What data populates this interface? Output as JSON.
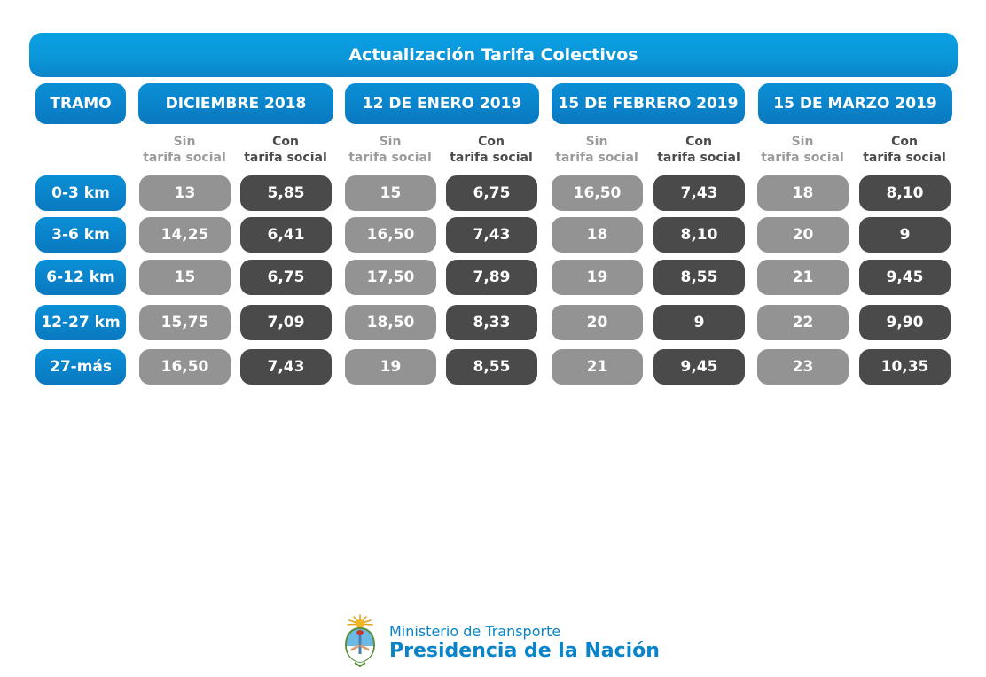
{
  "title": "Actualización Tarifa Colectivos",
  "tramo_header": "TRAMO",
  "periods": [
    {
      "label": "DICIEMBRE 2018"
    },
    {
      "label": "12 DE ENERO 2019"
    },
    {
      "label": "15 DE FEBRERO 2019"
    },
    {
      "label": "15 DE MARZO 2019"
    }
  ],
  "subheaders": {
    "sin": [
      "Sin",
      "tarifa social"
    ],
    "con": [
      "Con",
      "tarifa social"
    ]
  },
  "rows": [
    {
      "label": "0-3 km",
      "values": [
        "13",
        "5,85",
        "15",
        "6,75",
        "16,50",
        "7,43",
        "18",
        "8,10"
      ]
    },
    {
      "label": "3-6 km",
      "values": [
        "14,25",
        "6,41",
        "16,50",
        "7,43",
        "18",
        "8,10",
        "20",
        "9"
      ]
    },
    {
      "label": "6-12 km",
      "values": [
        "15",
        "6,75",
        "17,50",
        "7,89",
        "19",
        "8,55",
        "21",
        "9,45"
      ]
    },
    {
      "label": "12-27 km",
      "values": [
        "15,75",
        "7,09",
        "18,50",
        "8,33",
        "20",
        "9",
        "22",
        "9,90"
      ]
    },
    {
      "label": "27-más",
      "values": [
        "16,50",
        "7,43",
        "19",
        "8,55",
        "21",
        "9,45",
        "23",
        "10,35"
      ]
    }
  ],
  "colors": {
    "banner": "#0b97da",
    "header": "#0a84c8",
    "sin_cell": "#939393",
    "con_cell": "#4a4a4b"
  },
  "footer": {
    "ministry": "Ministerio de Transporte",
    "presidency": "Presidencia de la Nación"
  }
}
